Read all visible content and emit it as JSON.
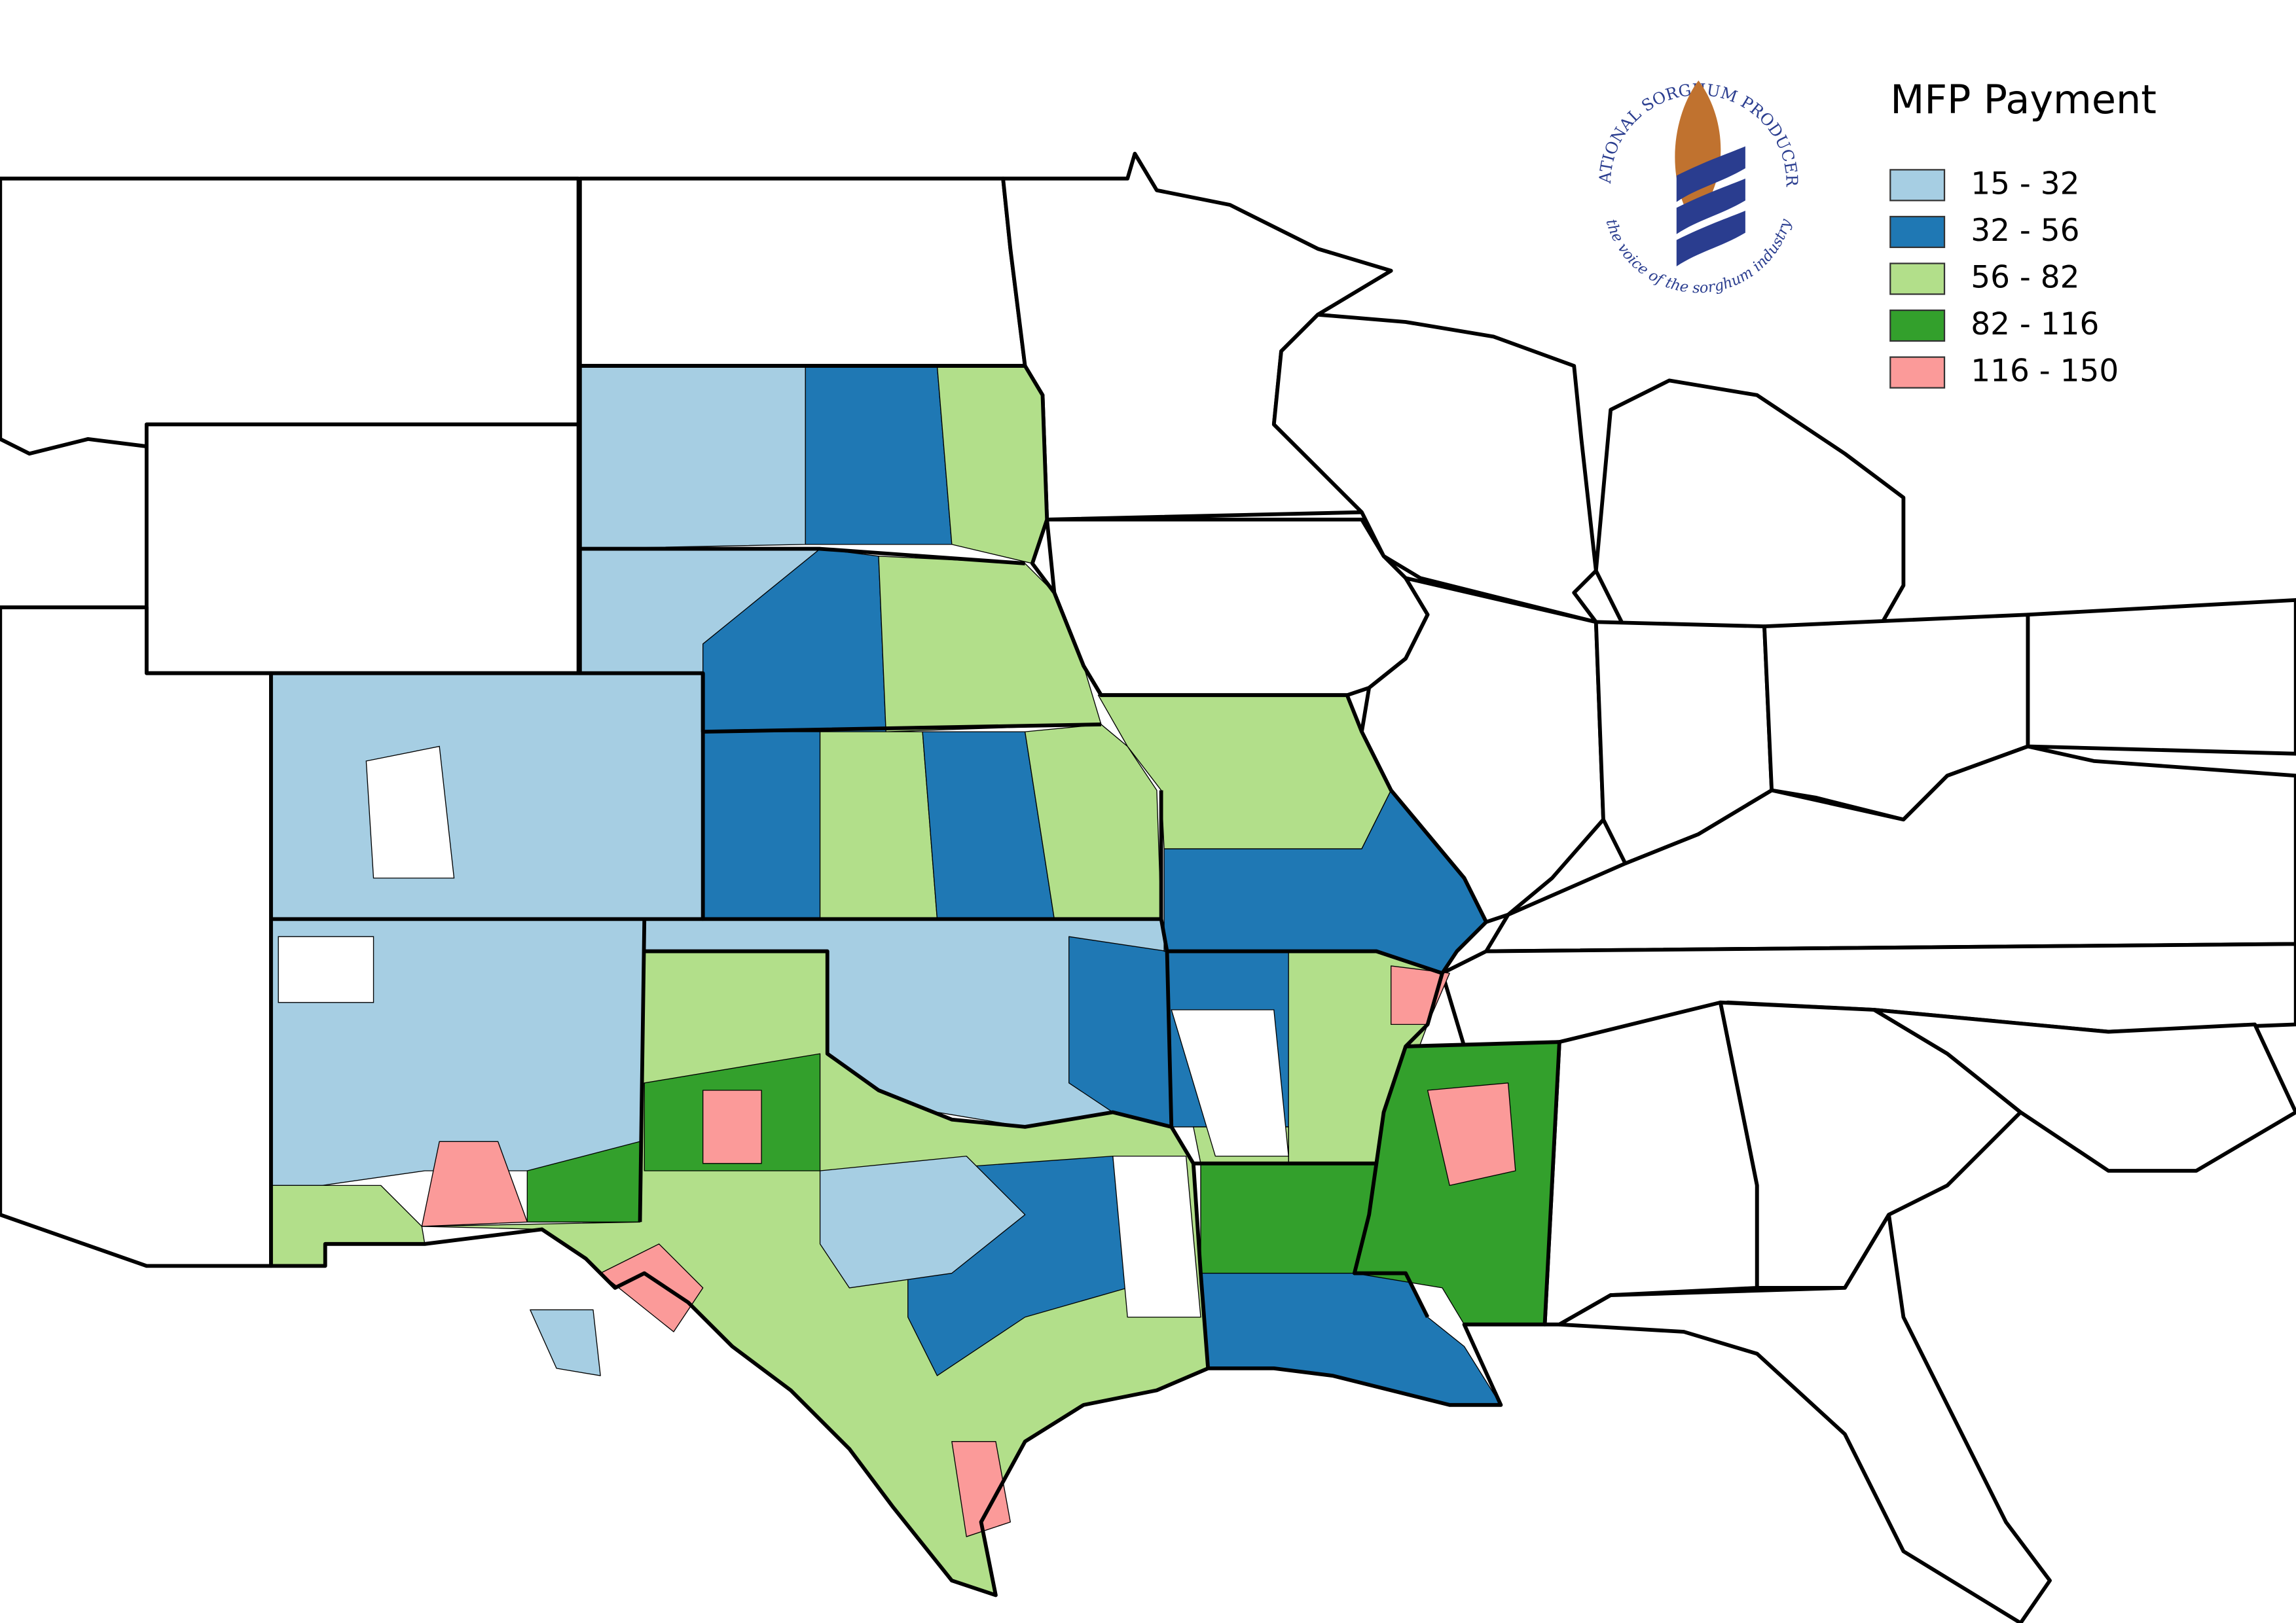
{
  "legend": {
    "title": "MFP Payment",
    "items": [
      {
        "label": "15 - 32",
        "color": "#a6cee3"
      },
      {
        "label": "32 - 56",
        "color": "#1f78b4"
      },
      {
        "label": "56 - 82",
        "color": "#b2df8a"
      },
      {
        "label": "82 - 116",
        "color": "#33a02c"
      },
      {
        "label": "116 - 150",
        "color": "#fb9a99"
      }
    ]
  },
  "logo": {
    "name": "NATIONAL SORGHUM PRODUCERS",
    "tagline": "the voice of the sorghum industry"
  }
}
